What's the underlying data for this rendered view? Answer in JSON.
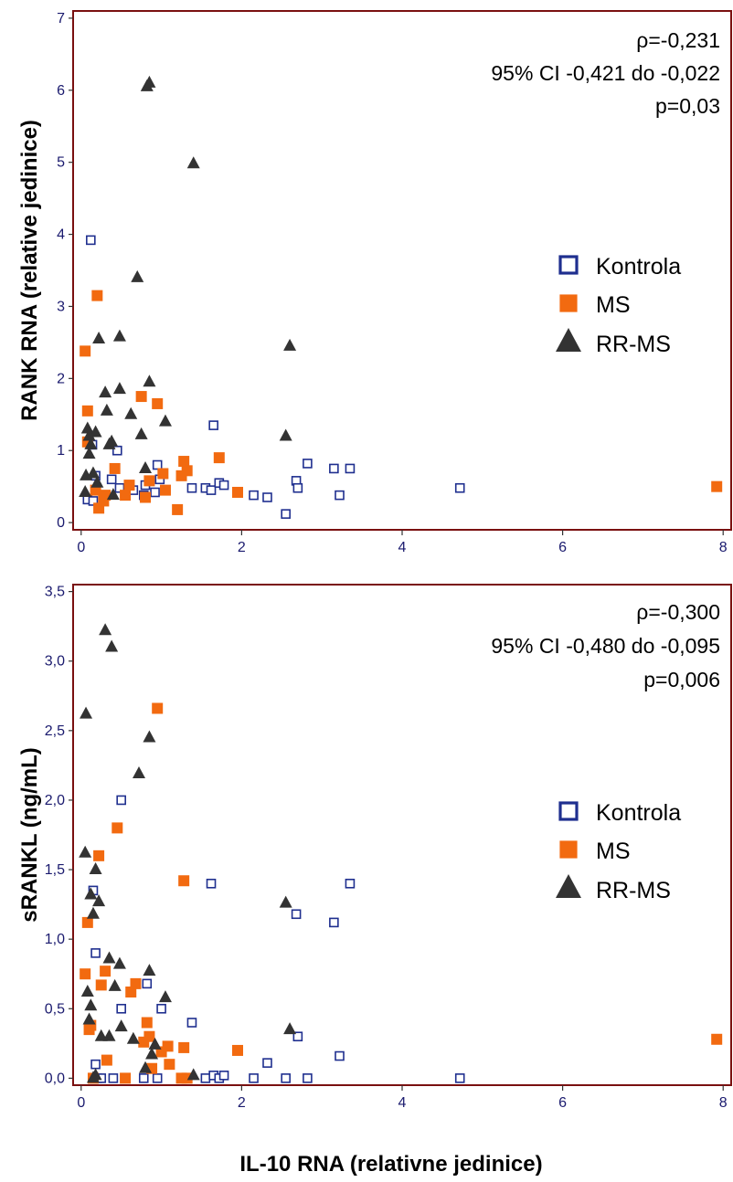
{
  "chart_data": [
    {
      "type": "scatter",
      "ylabel": "RANK RNA (relative jedinice)",
      "xlabel": "",
      "xlim": [
        -0.1,
        8.1
      ],
      "ylim": [
        -0.1,
        7.1
      ],
      "xticks": [
        0,
        2,
        4,
        6,
        8
      ],
      "yticks": [
        0,
        1,
        2,
        3,
        4,
        5,
        6,
        7
      ],
      "ytick_labels": [
        "0",
        "1",
        "2",
        "3",
        "4",
        "5",
        "6",
        "7"
      ],
      "grid": false,
      "legend_position": "right",
      "annotation": [
        "ρ=-0,231",
        "95% CI -0,421 do -0,022",
        "p=0,03"
      ],
      "series": [
        {
          "name": "Kontrola",
          "marker": "open-square",
          "color": "#1f2f8f",
          "points": [
            [
              0.12,
              3.92
            ],
            [
              0.08,
              0.32
            ],
            [
              0.15,
              0.3
            ],
            [
              0.18,
              0.65
            ],
            [
              0.14,
              1.08
            ],
            [
              0.38,
              0.6
            ],
            [
              0.45,
              1.0
            ],
            [
              0.48,
              0.48
            ],
            [
              0.65,
              0.45
            ],
            [
              0.78,
              0.38
            ],
            [
              0.8,
              0.52
            ],
            [
              0.92,
              0.42
            ],
            [
              0.95,
              0.8
            ],
            [
              0.98,
              0.6
            ],
            [
              1.38,
              0.48
            ],
            [
              1.55,
              0.48
            ],
            [
              1.62,
              0.45
            ],
            [
              1.65,
              1.35
            ],
            [
              1.72,
              0.55
            ],
            [
              1.78,
              0.52
            ],
            [
              2.15,
              0.38
            ],
            [
              2.32,
              0.35
            ],
            [
              2.55,
              0.12
            ],
            [
              2.68,
              0.58
            ],
            [
              2.7,
              0.48
            ],
            [
              2.82,
              0.82
            ],
            [
              3.15,
              0.75
            ],
            [
              3.22,
              0.38
            ],
            [
              3.35,
              0.75
            ],
            [
              4.72,
              0.48
            ]
          ]
        },
        {
          "name": "MS",
          "marker": "filled-square",
          "color": "#f26a10",
          "points": [
            [
              0.05,
              2.38
            ],
            [
              0.08,
              1.55
            ],
            [
              0.08,
              1.12
            ],
            [
              0.2,
              3.15
            ],
            [
              0.18,
              0.45
            ],
            [
              0.22,
              0.2
            ],
            [
              0.28,
              0.3
            ],
            [
              0.3,
              0.38
            ],
            [
              0.42,
              0.75
            ],
            [
              0.55,
              0.38
            ],
            [
              0.6,
              0.52
            ],
            [
              0.75,
              1.75
            ],
            [
              0.8,
              0.35
            ],
            [
              0.85,
              0.58
            ],
            [
              0.95,
              1.65
            ],
            [
              1.02,
              0.68
            ],
            [
              1.05,
              0.45
            ],
            [
              1.2,
              0.18
            ],
            [
              1.25,
              0.65
            ],
            [
              1.28,
              0.85
            ],
            [
              1.32,
              0.72
            ],
            [
              1.72,
              0.9
            ],
            [
              1.95,
              0.42
            ],
            [
              7.92,
              0.5
            ]
          ]
        },
        {
          "name": "RR-MS",
          "marker": "filled-triangle",
          "color": "#333333",
          "points": [
            [
              0.05,
              0.42
            ],
            [
              0.06,
              0.65
            ],
            [
              0.08,
              1.3
            ],
            [
              0.1,
              0.95
            ],
            [
              0.12,
              1.08
            ],
            [
              0.15,
              0.68
            ],
            [
              0.18,
              1.25
            ],
            [
              0.2,
              0.55
            ],
            [
              0.22,
              2.55
            ],
            [
              0.3,
              1.8
            ],
            [
              0.32,
              1.55
            ],
            [
              0.35,
              1.08
            ],
            [
              0.38,
              1.12
            ],
            [
              0.4,
              0.38
            ],
            [
              0.48,
              2.58
            ],
            [
              0.48,
              1.85
            ],
            [
              0.62,
              1.5
            ],
            [
              0.7,
              3.4
            ],
            [
              0.75,
              1.22
            ],
            [
              0.8,
              0.75
            ],
            [
              0.82,
              6.05
            ],
            [
              0.85,
              6.1
            ],
            [
              0.85,
              1.95
            ],
            [
              1.05,
              1.4
            ],
            [
              1.4,
              4.98
            ],
            [
              2.55,
              1.2
            ],
            [
              2.6,
              2.45
            ],
            [
              0.1,
              1.2
            ]
          ]
        }
      ]
    },
    {
      "type": "scatter",
      "ylabel": "sRANKL  (ng/mL)",
      "xlabel": "IL-10 RNA (relativne jedinice)",
      "xlim": [
        -0.1,
        8.1
      ],
      "ylim": [
        -0.05,
        3.55
      ],
      "xticks": [
        0,
        2,
        4,
        6,
        8
      ],
      "yticks": [
        0,
        0.5,
        1,
        1.5,
        2,
        2.5,
        3,
        3.5
      ],
      "ytick_labels": [
        "0,0",
        "0,5",
        "1,0",
        "1,5",
        "2,0",
        "2,5",
        "3,0",
        "3,5"
      ],
      "grid": false,
      "legend_position": "right",
      "annotation": [
        "ρ=-0,300",
        "95% CI -0,480 do -0,095",
        "p=0,006"
      ],
      "series": [
        {
          "name": "Kontrola",
          "marker": "open-square",
          "color": "#1f2f8f",
          "points": [
            [
              0.15,
              1.35
            ],
            [
              0.18,
              0.9
            ],
            [
              0.18,
              0.1
            ],
            [
              0.2,
              0.0
            ],
            [
              0.25,
              0.0
            ],
            [
              0.4,
              0.0
            ],
            [
              0.5,
              2.0
            ],
            [
              0.5,
              0.5
            ],
            [
              0.78,
              0.0
            ],
            [
              0.82,
              0.68
            ],
            [
              0.95,
              0.0
            ],
            [
              1.0,
              0.5
            ],
            [
              1.38,
              0.4
            ],
            [
              1.55,
              0.0
            ],
            [
              1.62,
              1.4
            ],
            [
              1.65,
              0.02
            ],
            [
              1.72,
              0.0
            ],
            [
              1.78,
              0.02
            ],
            [
              2.15,
              0.0
            ],
            [
              2.32,
              0.11
            ],
            [
              2.55,
              0.0
            ],
            [
              2.68,
              1.18
            ],
            [
              2.7,
              0.3
            ],
            [
              2.82,
              0.0
            ],
            [
              3.15,
              1.12
            ],
            [
              3.22,
              0.16
            ],
            [
              3.35,
              1.4
            ],
            [
              4.72,
              0.0
            ]
          ]
        },
        {
          "name": "MS",
          "marker": "filled-square",
          "color": "#f26a10",
          "points": [
            [
              0.05,
              0.75
            ],
            [
              0.08,
              1.12
            ],
            [
              0.1,
              0.35
            ],
            [
              0.12,
              0.38
            ],
            [
              0.15,
              0.0
            ],
            [
              0.22,
              1.6
            ],
            [
              0.25,
              0.67
            ],
            [
              0.3,
              0.77
            ],
            [
              0.32,
              0.13
            ],
            [
              0.45,
              1.8
            ],
            [
              0.55,
              0.0
            ],
            [
              0.62,
              0.62
            ],
            [
              0.68,
              0.68
            ],
            [
              0.78,
              0.26
            ],
            [
              0.82,
              0.4
            ],
            [
              0.85,
              0.3
            ],
            [
              0.88,
              0.07
            ],
            [
              0.95,
              2.66
            ],
            [
              1.0,
              0.19
            ],
            [
              1.08,
              0.23
            ],
            [
              1.1,
              0.1
            ],
            [
              1.25,
              0.0
            ],
            [
              1.28,
              1.42
            ],
            [
              1.28,
              0.22
            ],
            [
              1.32,
              0.0
            ],
            [
              1.95,
              0.2
            ],
            [
              7.92,
              0.28
            ]
          ]
        },
        {
          "name": "RR-MS",
          "marker": "filled-triangle",
          "color": "#333333",
          "points": [
            [
              0.05,
              1.62
            ],
            [
              0.06,
              2.62
            ],
            [
              0.08,
              0.62
            ],
            [
              0.1,
              0.42
            ],
            [
              0.12,
              0.52
            ],
            [
              0.12,
              1.32
            ],
            [
              0.15,
              1.18
            ],
            [
              0.18,
              1.5
            ],
            [
              0.18,
              0.02
            ],
            [
              0.22,
              1.27
            ],
            [
              0.25,
              0.3
            ],
            [
              0.3,
              3.22
            ],
            [
              0.35,
              0.3
            ],
            [
              0.35,
              0.86
            ],
            [
              0.38,
              3.1
            ],
            [
              0.42,
              0.66
            ],
            [
              0.48,
              0.82
            ],
            [
              0.5,
              0.37
            ],
            [
              0.65,
              0.28
            ],
            [
              0.72,
              2.19
            ],
            [
              0.8,
              0.07
            ],
            [
              0.85,
              2.45
            ],
            [
              0.85,
              0.77
            ],
            [
              0.88,
              0.17
            ],
            [
              0.92,
              0.24
            ],
            [
              1.05,
              0.58
            ],
            [
              1.4,
              0.02
            ],
            [
              2.55,
              1.26
            ],
            [
              2.6,
              0.35
            ],
            [
              0.15,
              0.0
            ]
          ]
        }
      ]
    }
  ]
}
